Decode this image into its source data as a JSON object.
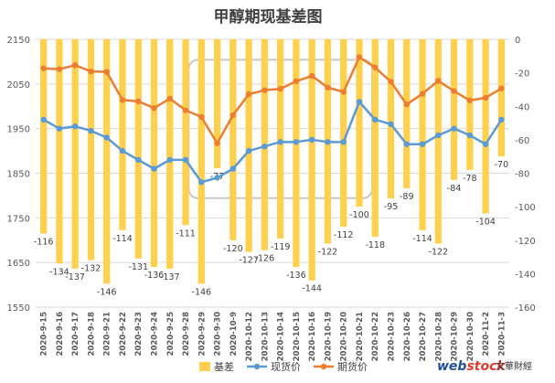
{
  "chart_data": {
    "type": "bar+line",
    "title": "甲醇期现基差图",
    "categories": [
      "2020-9-15",
      "2020-9-16",
      "2020-9-17",
      "2020-9-18",
      "2020-9-21",
      "2020-9-22",
      "2020-9-23",
      "2020-9-24",
      "2020-9-25",
      "2020-9-28",
      "2020-9-29",
      "2020-9-30",
      "2020-10-9",
      "2020-10-12",
      "2020-10-13",
      "2020-10-14",
      "2020-10-15",
      "2020-10-16",
      "2020-10-19",
      "2020-10-20",
      "2020-10-21",
      "2020-10-22",
      "2020-10-23",
      "2020-10-26",
      "2020-10-27",
      "2020-10-28",
      "2020-10-29",
      "2020-10-30",
      "2020-11-2",
      "2020-11-3"
    ],
    "left_axis": {
      "min": 1550,
      "max": 2150,
      "ticks": [
        1550,
        1650,
        1750,
        1850,
        1950,
        2050,
        2150
      ]
    },
    "right_axis": {
      "min": -160,
      "max": 0,
      "ticks": [
        -160,
        -140,
        -120,
        -100,
        -80,
        -60,
        -40,
        -20,
        0
      ]
    },
    "series": [
      {
        "name": "基差",
        "type": "bar",
        "axis": "right",
        "color": "#FFD04E",
        "values": [
          -116,
          -134,
          -137,
          -132,
          -146,
          -114,
          -131,
          -136,
          -137,
          -111,
          -146,
          -77,
          -120,
          -127,
          -126,
          -119,
          -136,
          -144,
          -122,
          -112,
          -100,
          -118,
          -95,
          -89,
          -114,
          -122,
          -84,
          -78,
          -104,
          -70
        ]
      },
      {
        "name": "现货价",
        "type": "line",
        "axis": "left",
        "color": "#5B9BD5",
        "values": [
          1970,
          1950,
          1955,
          1945,
          1930,
          1900,
          1880,
          1860,
          1880,
          1880,
          1830,
          1840,
          1860,
          1900,
          1910,
          1920,
          1920,
          1925,
          1920,
          1920,
          2010,
          1970,
          1960,
          1915,
          1915,
          1935,
          1950,
          1935,
          1915,
          1970
        ]
      },
      {
        "name": "期货价",
        "type": "line",
        "axis": "left",
        "color": "#ED7D31",
        "values": [
          2085,
          2083,
          2092,
          2078,
          2077,
          2014,
          2011,
          1996,
          2017,
          1991,
          1976,
          1917,
          1980,
          2027,
          2036,
          2039,
          2056,
          2068,
          2042,
          2032,
          2110,
          2087,
          2055,
          2004,
          2028,
          2057,
          2034,
          2013,
          2019,
          2040
        ]
      }
    ],
    "legend_position": "bottom"
  },
  "watermark": {
    "web": "web",
    "stock": "stock",
    "name": "文華財經"
  },
  "colors": {
    "grid": "#D9D9D9",
    "axis_text": "#595959",
    "title": "#404040",
    "highlight_box": "#C8C8C8"
  }
}
